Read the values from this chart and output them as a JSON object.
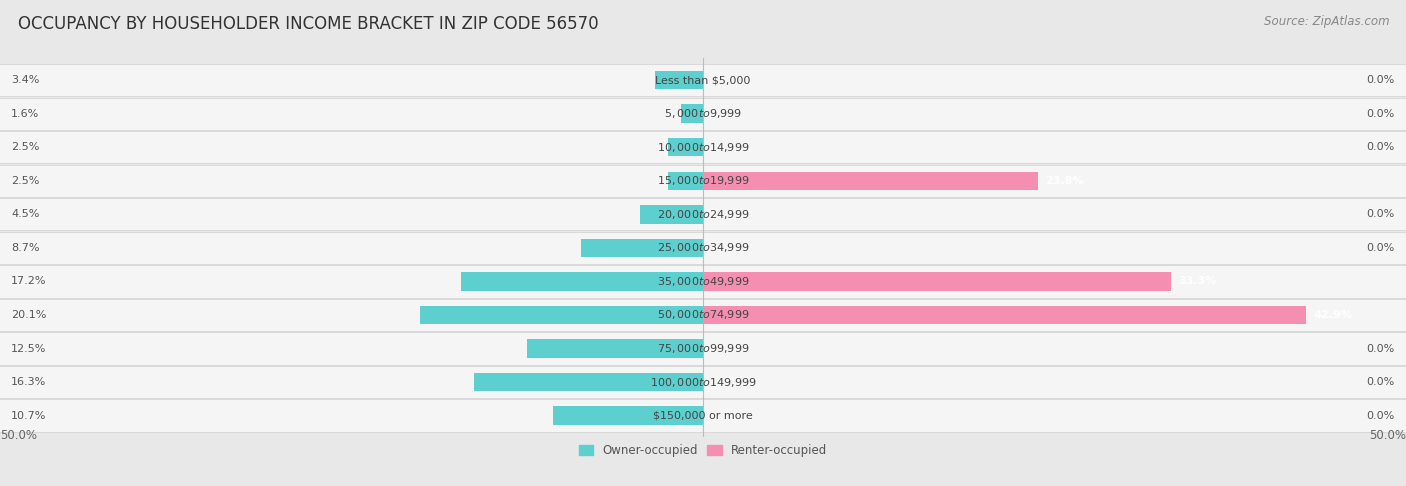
{
  "title": "OCCUPANCY BY HOUSEHOLDER INCOME BRACKET IN ZIP CODE 56570",
  "source": "Source: ZipAtlas.com",
  "categories": [
    "Less than $5,000",
    "$5,000 to $9,999",
    "$10,000 to $14,999",
    "$15,000 to $19,999",
    "$20,000 to $24,999",
    "$25,000 to $34,999",
    "$35,000 to $49,999",
    "$50,000 to $74,999",
    "$75,000 to $99,999",
    "$100,000 to $149,999",
    "$150,000 or more"
  ],
  "owner_values": [
    3.4,
    1.6,
    2.5,
    2.5,
    4.5,
    8.7,
    17.2,
    20.1,
    12.5,
    16.3,
    10.7
  ],
  "renter_values": [
    0.0,
    0.0,
    0.0,
    23.8,
    0.0,
    0.0,
    33.3,
    42.9,
    0.0,
    0.0,
    0.0
  ],
  "owner_color": "#5ecfcf",
  "renter_color": "#f48fb1",
  "bar_height": 0.55,
  "xlim": 50.0,
  "bg_color": "#e8e8e8",
  "row_bg_color": "#f5f5f5",
  "row_border_color": "#d0d0d0",
  "title_fontsize": 12,
  "source_fontsize": 8.5,
  "cat_fontsize": 8,
  "val_fontsize": 8,
  "tick_fontsize": 8.5,
  "legend_fontsize": 8.5,
  "legend_label_owner": "Owner-occupied",
  "legend_label_renter": "Renter-occupied"
}
